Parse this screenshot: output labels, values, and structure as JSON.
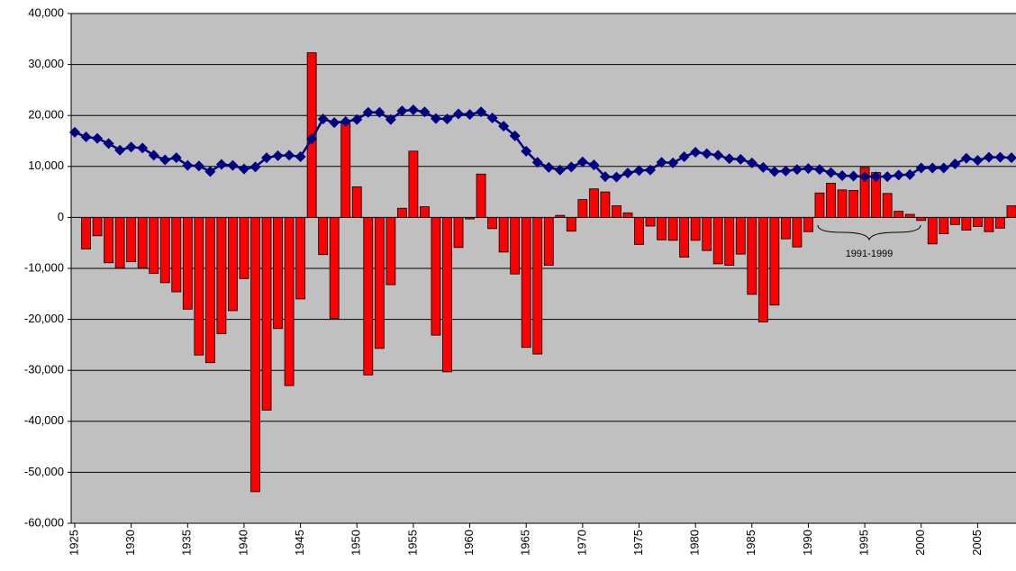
{
  "chart_data": {
    "type": "bar",
    "x": [
      1925,
      1926,
      1927,
      1928,
      1929,
      1930,
      1931,
      1932,
      1933,
      1934,
      1935,
      1936,
      1937,
      1938,
      1939,
      1940,
      1941,
      1942,
      1943,
      1944,
      1945,
      1946,
      1947,
      1948,
      1949,
      1950,
      1951,
      1952,
      1953,
      1954,
      1955,
      1956,
      1957,
      1958,
      1959,
      1960,
      1961,
      1962,
      1963,
      1964,
      1965,
      1966,
      1967,
      1968,
      1969,
      1970,
      1971,
      1972,
      1973,
      1974,
      1975,
      1976,
      1977,
      1978,
      1979,
      1980,
      1981,
      1982,
      1983,
      1984,
      1985,
      1986,
      1987,
      1988,
      1989,
      1990,
      1991,
      1992,
      1993,
      1994,
      1995,
      1996,
      1997,
      1998,
      1999,
      2000,
      2001,
      2002,
      2003,
      2004,
      2005,
      2006,
      2007,
      2008
    ],
    "series": [
      {
        "type": "bar",
        "color": "#ff0000",
        "values": [
          null,
          -6200,
          -3600,
          -8900,
          -9900,
          -8700,
          -9900,
          -11000,
          -12800,
          -14600,
          -18000,
          -27000,
          -28500,
          -22800,
          -18300,
          -12000,
          -53800,
          -37800,
          -21800,
          -33000,
          -16000,
          32300,
          -7300,
          -19800,
          18500,
          6000,
          -30900,
          -25700,
          -13200,
          1800,
          13000,
          2100,
          -23100,
          -30300,
          -5900,
          -300,
          8500,
          -2200,
          -6800,
          -11100,
          -25500,
          -26800,
          -9400,
          400,
          -2700,
          3500,
          5600,
          5000,
          2300,
          900,
          -5300,
          -1700,
          -4400,
          -4500,
          -7800,
          -4500,
          -6500,
          -9100,
          -9400,
          -7200,
          -15100,
          -20500,
          -17200,
          -4200,
          -5800,
          -2800,
          4800,
          6700,
          5400,
          5300,
          9800,
          8800,
          4700,
          1200,
          600,
          -600,
          -5200,
          -3200,
          -1400,
          -2500,
          -1800,
          -2800,
          -2100,
          2300
        ]
      },
      {
        "type": "line",
        "color": "#000080",
        "values": [
          16700,
          15800,
          15500,
          14500,
          13200,
          13800,
          13600,
          12200,
          11300,
          11700,
          10200,
          10100,
          9000,
          10400,
          10200,
          9500,
          9900,
          11700,
          12100,
          12200,
          11900,
          15400,
          19300,
          18600,
          18800,
          19200,
          20600,
          20600,
          19200,
          20900,
          21100,
          20700,
          19400,
          19300,
          20300,
          20200,
          20700,
          19500,
          17900,
          16000,
          13000,
          10800,
          9800,
          9300,
          9900,
          10900,
          10300,
          8000,
          7900,
          8700,
          9200,
          9300,
          10800,
          10700,
          11900,
          12800,
          12500,
          12200,
          11500,
          11400,
          10700,
          9800,
          9000,
          9100,
          9400,
          9600,
          9400,
          8800,
          8200,
          8100,
          8000,
          8000,
          8000,
          8300,
          8400,
          9700,
          9700,
          9700,
          10500,
          11600,
          11200,
          11800,
          11800,
          11700
        ]
      }
    ],
    "xlim": [
      1924.68,
      2008.4
    ],
    "xticks": [
      1925,
      1930,
      1935,
      1940,
      1945,
      1950,
      1955,
      1960,
      1965,
      1970,
      1975,
      1980,
      1985,
      1990,
      1995,
      2000,
      2005
    ],
    "ylim": [
      -60000,
      40000
    ],
    "yticks": [
      {
        "value": -60000,
        "label": "-60,000"
      },
      {
        "value": -50000,
        "label": "-50,000"
      },
      {
        "value": -40000,
        "label": "-40,000"
      },
      {
        "value": -30000,
        "label": "-30,000"
      },
      {
        "value": -20000,
        "label": "-20,000"
      },
      {
        "value": -10000,
        "label": "-10,000"
      },
      0,
      {
        "value": 10000,
        "label": "10,000"
      },
      {
        "value": 20000,
        "label": "20,000"
      },
      {
        "value": 30000,
        "label": "30,000"
      },
      {
        "value": 40000,
        "label": "40,000"
      }
    ],
    "grid": true,
    "background": "#c0c0c0",
    "annotation": "1991-1999"
  }
}
